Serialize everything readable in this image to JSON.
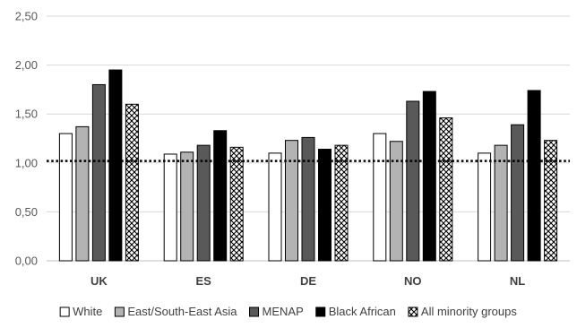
{
  "chart_data": {
    "type": "bar",
    "title": "",
    "xlabel": "",
    "ylabel": "",
    "categories": [
      "UK",
      "ES",
      "DE",
      "NO",
      "NL"
    ],
    "series": [
      {
        "name": "White",
        "values": [
          1.3,
          1.09,
          1.1,
          1.3,
          1.1
        ],
        "fill": "#ffffff",
        "pattern": "solid"
      },
      {
        "name": "East/South-East Asia",
        "values": [
          1.37,
          1.11,
          1.23,
          1.22,
          1.18
        ],
        "fill": "#b3b3b3",
        "pattern": "solid"
      },
      {
        "name": "MENAP",
        "values": [
          1.8,
          1.18,
          1.26,
          1.63,
          1.39
        ],
        "fill": "#595959",
        "pattern": "solid"
      },
      {
        "name": "Black African",
        "values": [
          1.95,
          1.33,
          1.14,
          1.73,
          1.74
        ],
        "fill": "#000000",
        "pattern": "solid"
      },
      {
        "name": "All minority groups",
        "values": [
          1.6,
          1.16,
          1.18,
          1.46,
          1.23
        ],
        "fill": "#ffffff",
        "pattern": "checker"
      }
    ],
    "ylim": [
      0,
      2.5
    ],
    "yticks": [
      "0,00",
      "0,50",
      "1,00",
      "1,50",
      "2,00",
      "2,50"
    ],
    "ytick_values": [
      0,
      0.5,
      1.0,
      1.5,
      2.0,
      2.5
    ],
    "reference_line": {
      "value": 1.02,
      "style": "dotted",
      "color": "#000000"
    },
    "grid": true,
    "legend_position": "bottom"
  }
}
